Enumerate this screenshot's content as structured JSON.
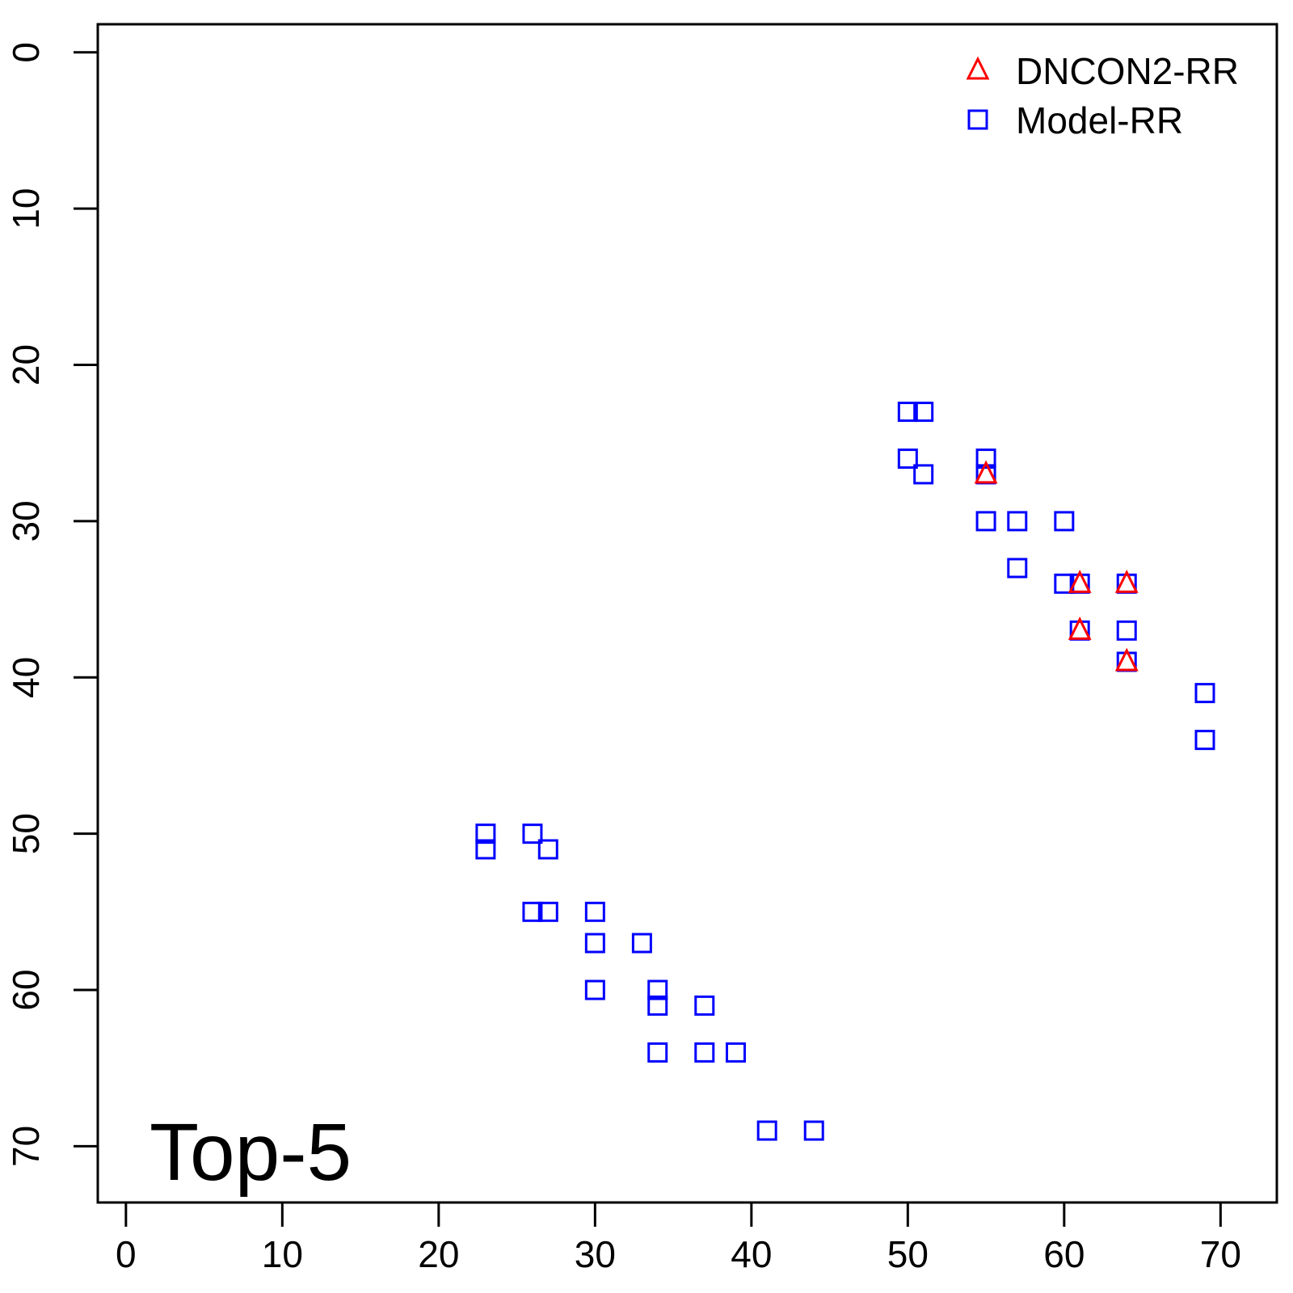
{
  "chart_data": {
    "type": "scatter",
    "title": "",
    "xlabel": "",
    "ylabel": "",
    "xlim": [
      -1.8,
      73.6
    ],
    "ylim": [
      -1.8,
      73.6
    ],
    "y_reversed": true,
    "x_ticks": [
      0,
      10,
      20,
      30,
      40,
      50,
      60,
      70
    ],
    "y_ticks": [
      0,
      10,
      20,
      30,
      40,
      50,
      60,
      70
    ],
    "grid": false,
    "legend_position": "top-right",
    "annotation": "Top-5",
    "series": [
      {
        "name": "DNCON2-RR",
        "marker": "triangle",
        "color": "#ff0000",
        "points": [
          [
            55,
            27
          ],
          [
            61,
            34
          ],
          [
            64,
            34
          ],
          [
            61,
            37
          ],
          [
            64,
            39
          ]
        ]
      },
      {
        "name": "Model-RR",
        "marker": "square",
        "color": "#0000ff",
        "points": [
          [
            50,
            23
          ],
          [
            51,
            23
          ],
          [
            50,
            26
          ],
          [
            51,
            27
          ],
          [
            55,
            26
          ],
          [
            55,
            27
          ],
          [
            55,
            30
          ],
          [
            57,
            30
          ],
          [
            60,
            30
          ],
          [
            57,
            33
          ],
          [
            60,
            34
          ],
          [
            61,
            34
          ],
          [
            64,
            34
          ],
          [
            61,
            37
          ],
          [
            64,
            37
          ],
          [
            64,
            39
          ],
          [
            69,
            41
          ],
          [
            69,
            44
          ],
          [
            23,
            50
          ],
          [
            23,
            51
          ],
          [
            26,
            50
          ],
          [
            27,
            51
          ],
          [
            26,
            55
          ],
          [
            27,
            55
          ],
          [
            30,
            55
          ],
          [
            30,
            57
          ],
          [
            33,
            57
          ],
          [
            30,
            60
          ],
          [
            34,
            60
          ],
          [
            34,
            61
          ],
          [
            37,
            61
          ],
          [
            34,
            64
          ],
          [
            37,
            64
          ],
          [
            39,
            64
          ],
          [
            41,
            69
          ],
          [
            44,
            69
          ]
        ]
      }
    ]
  }
}
